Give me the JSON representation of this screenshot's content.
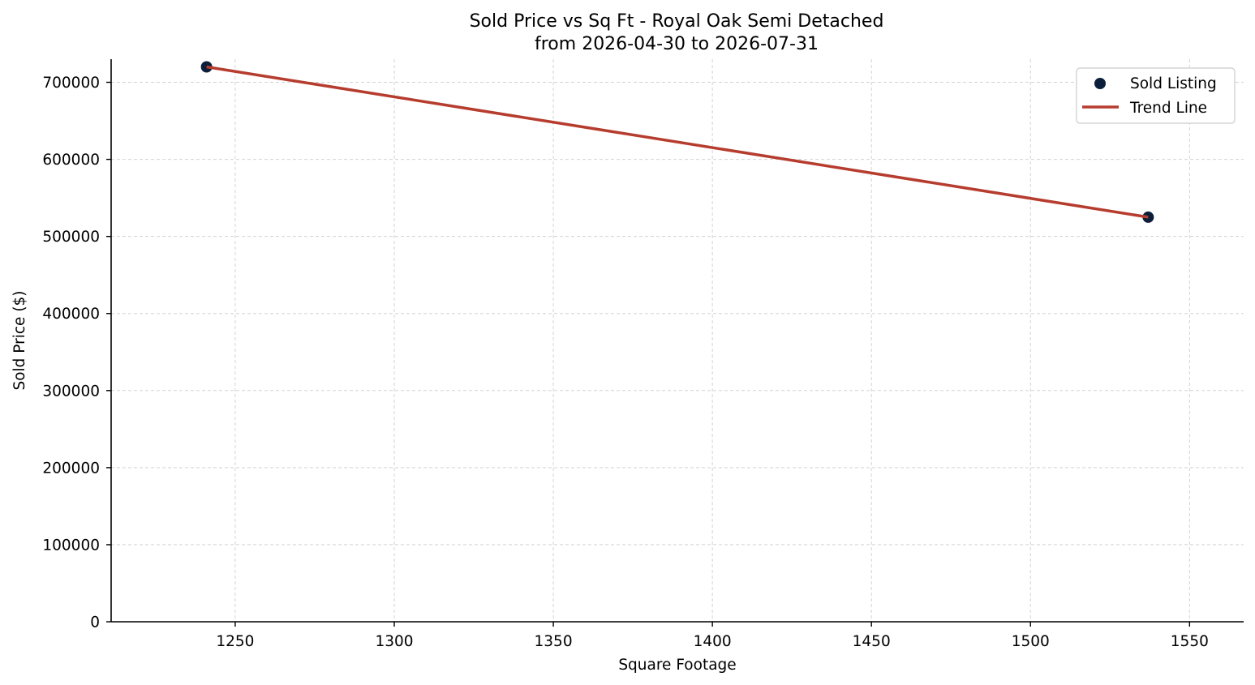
{
  "chart_data": {
    "type": "scatter",
    "title": "Sold Price vs Sq Ft - Royal Oak Semi Detached",
    "subtitle": "from 2026-04-30 to 2026-07-31",
    "xlabel": "Square Footage",
    "ylabel": "Sold Price ($)",
    "xlim": [
      1211,
      1567
    ],
    "ylim": [
      0,
      730000
    ],
    "xticks": [
      1250,
      1300,
      1350,
      1400,
      1450,
      1500,
      1550
    ],
    "yticks": [
      0,
      100000,
      200000,
      300000,
      400000,
      500000,
      600000,
      700000
    ],
    "grid": true,
    "legend_position": "top-right",
    "series": [
      {
        "name": "Sold Listing",
        "kind": "scatter",
        "color": "#0b1f3a",
        "points": [
          {
            "x": 1241,
            "y": 720000
          },
          {
            "x": 1537,
            "y": 525000
          }
        ]
      },
      {
        "name": "Trend Line",
        "kind": "line",
        "color": "#b63c2e",
        "points": [
          {
            "x": 1241,
            "y": 720000
          },
          {
            "x": 1537,
            "y": 525000
          }
        ]
      }
    ]
  }
}
